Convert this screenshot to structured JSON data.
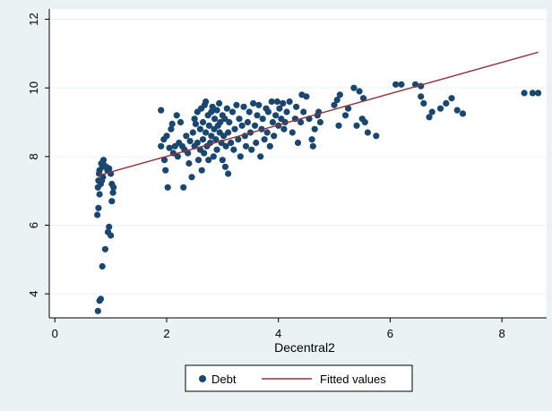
{
  "chart_data": {
    "type": "scatter",
    "xlabel": "Decentral2",
    "ylabel": "",
    "xlim": [
      -0.1,
      8.8
    ],
    "ylim": [
      3.3,
      12.3
    ],
    "xticks": [
      0,
      2,
      4,
      6,
      8
    ],
    "yticks": [
      4,
      6,
      8,
      10,
      12
    ],
    "grid": "horizontal",
    "legend_position": "bottom",
    "colors": {
      "points": "#1a476f",
      "line": "#90353b",
      "plot_bg": "#ffffff",
      "page_bg": "#eaf2f3"
    },
    "series": [
      {
        "name": "Debt",
        "kind": "scatter",
        "points": [
          [
            0.77,
            3.5
          ],
          [
            0.82,
            3.85
          ],
          [
            0.8,
            3.8
          ],
          [
            0.85,
            4.8
          ],
          [
            0.9,
            5.3
          ],
          [
            0.95,
            5.8
          ],
          [
            0.97,
            5.95
          ],
          [
            1.0,
            5.7
          ],
          [
            1.02,
            6.7
          ],
          [
            0.76,
            6.3
          ],
          [
            0.78,
            6.5
          ],
          [
            0.8,
            6.9
          ],
          [
            0.77,
            7.1
          ],
          [
            0.78,
            7.3
          ],
          [
            0.8,
            7.6
          ],
          [
            0.79,
            7.5
          ],
          [
            0.82,
            7.2
          ],
          [
            0.85,
            7.7
          ],
          [
            0.83,
            7.8
          ],
          [
            0.87,
            7.9
          ],
          [
            0.84,
            7.3
          ],
          [
            0.86,
            7.4
          ],
          [
            0.88,
            7.75
          ],
          [
            0.92,
            7.7
          ],
          [
            0.94,
            7.6
          ],
          [
            0.97,
            7.65
          ],
          [
            1.0,
            7.5
          ],
          [
            1.02,
            7.2
          ],
          [
            1.05,
            7.1
          ],
          [
            1.04,
            6.95
          ],
          [
            1.9,
            9.35
          ],
          [
            1.9,
            8.3
          ],
          [
            1.95,
            8.5
          ],
          [
            1.96,
            7.9
          ],
          [
            1.98,
            7.6
          ],
          [
            2.0,
            8.6
          ],
          [
            2.02,
            7.1
          ],
          [
            2.05,
            8.25
          ],
          [
            2.08,
            8.8
          ],
          [
            2.1,
            8.95
          ],
          [
            2.12,
            8.1
          ],
          [
            2.15,
            8.3
          ],
          [
            2.18,
            9.2
          ],
          [
            2.2,
            8.0
          ],
          [
            2.22,
            8.4
          ],
          [
            2.25,
            9.0
          ],
          [
            2.28,
            8.3
          ],
          [
            2.3,
            7.1
          ],
          [
            2.32,
            8.2
          ],
          [
            2.35,
            8.6
          ],
          [
            2.38,
            8.1
          ],
          [
            2.4,
            7.8
          ],
          [
            2.42,
            8.45
          ],
          [
            2.45,
            7.4
          ],
          [
            2.47,
            8.7
          ],
          [
            2.5,
            8.3
          ],
          [
            2.5,
            9.1
          ],
          [
            2.52,
            8.95
          ],
          [
            2.55,
            8.4
          ],
          [
            2.55,
            9.3
          ],
          [
            2.57,
            7.9
          ],
          [
            2.6,
            8.2
          ],
          [
            2.6,
            8.8
          ],
          [
            2.62,
            9.4
          ],
          [
            2.63,
            7.6
          ],
          [
            2.65,
            8.5
          ],
          [
            2.65,
            9.0
          ],
          [
            2.67,
            8.1
          ],
          [
            2.68,
            9.5
          ],
          [
            2.7,
            8.7
          ],
          [
            2.7,
            9.6
          ],
          [
            2.72,
            8.3
          ],
          [
            2.74,
            9.2
          ],
          [
            2.75,
            7.9
          ],
          [
            2.76,
            8.9
          ],
          [
            2.78,
            8.4
          ],
          [
            2.8,
            9.3
          ],
          [
            2.8,
            8.6
          ],
          [
            2.82,
            9.45
          ],
          [
            2.84,
            8.0
          ],
          [
            2.85,
            8.8
          ],
          [
            2.86,
            9.1
          ],
          [
            2.88,
            8.5
          ],
          [
            2.9,
            9.35
          ],
          [
            2.9,
            8.2
          ],
          [
            2.92,
            8.9
          ],
          [
            2.94,
            9.55
          ],
          [
            2.95,
            8.7
          ],
          [
            2.96,
            9.0
          ],
          [
            2.98,
            8.4
          ],
          [
            3.0,
            9.2
          ],
          [
            3.0,
            7.9
          ],
          [
            3.02,
            8.6
          ],
          [
            3.04,
            9.1
          ],
          [
            3.05,
            7.7
          ],
          [
            3.06,
            8.3
          ],
          [
            3.08,
            9.4
          ],
          [
            3.1,
            8.7
          ],
          [
            3.1,
            7.5
          ],
          [
            3.12,
            9.0
          ],
          [
            3.15,
            8.4
          ],
          [
            3.18,
            9.3
          ],
          [
            3.2,
            8.2
          ],
          [
            3.22,
            8.8
          ],
          [
            3.25,
            9.5
          ],
          [
            3.28,
            8.5
          ],
          [
            3.3,
            9.1
          ],
          [
            3.32,
            8.0
          ],
          [
            3.35,
            8.9
          ],
          [
            3.38,
            9.45
          ],
          [
            3.4,
            8.6
          ],
          [
            3.42,
            8.3
          ],
          [
            3.45,
            9.0
          ],
          [
            3.48,
            9.3
          ],
          [
            3.5,
            8.7
          ],
          [
            3.52,
            8.2
          ],
          [
            3.55,
            9.55
          ],
          [
            3.58,
            8.9
          ],
          [
            3.6,
            8.4
          ],
          [
            3.62,
            9.2
          ],
          [
            3.65,
            9.5
          ],
          [
            3.68,
            8.0
          ],
          [
            3.7,
            8.8
          ],
          [
            3.72,
            9.1
          ],
          [
            3.75,
            8.5
          ],
          [
            3.78,
            9.4
          ],
          [
            3.8,
            8.7
          ],
          [
            3.82,
            9.3
          ],
          [
            3.85,
            8.3
          ],
          [
            3.88,
            9.6
          ],
          [
            3.9,
            9.0
          ],
          [
            3.92,
            8.6
          ],
          [
            3.95,
            9.2
          ],
          [
            3.98,
            9.6
          ],
          [
            4.0,
            8.9
          ],
          [
            4.02,
            9.4
          ],
          [
            4.05,
            9.1
          ],
          [
            4.08,
            9.55
          ],
          [
            4.1,
            8.8
          ],
          [
            4.12,
            9.0
          ],
          [
            4.15,
            9.3
          ],
          [
            4.2,
            9.6
          ],
          [
            4.25,
            8.7
          ],
          [
            4.3,
            9.1
          ],
          [
            4.32,
            9.45
          ],
          [
            4.35,
            8.4
          ],
          [
            4.4,
            9.0
          ],
          [
            4.42,
            9.8
          ],
          [
            4.45,
            9.3
          ],
          [
            4.5,
            9.75
          ],
          [
            4.55,
            9.1
          ],
          [
            4.6,
            8.5
          ],
          [
            4.62,
            8.3
          ],
          [
            4.65,
            8.8
          ],
          [
            4.7,
            9.2
          ],
          [
            4.72,
            9.3
          ],
          [
            4.75,
            9.0
          ],
          [
            5.0,
            9.5
          ],
          [
            5.05,
            9.65
          ],
          [
            5.08,
            8.9
          ],
          [
            5.1,
            9.8
          ],
          [
            5.2,
            9.2
          ],
          [
            5.25,
            9.4
          ],
          [
            5.35,
            10.0
          ],
          [
            5.4,
            8.9
          ],
          [
            5.45,
            9.9
          ],
          [
            5.5,
            9.1
          ],
          [
            5.52,
            9.7
          ],
          [
            5.55,
            9.0
          ],
          [
            5.6,
            8.7
          ],
          [
            5.75,
            8.6
          ],
          [
            6.1,
            10.1
          ],
          [
            6.2,
            10.1
          ],
          [
            6.45,
            10.1
          ],
          [
            6.55,
            10.05
          ],
          [
            6.55,
            9.75
          ],
          [
            6.6,
            9.55
          ],
          [
            6.7,
            9.15
          ],
          [
            6.75,
            9.3
          ],
          [
            6.9,
            9.4
          ],
          [
            7.0,
            9.55
          ],
          [
            7.1,
            9.7
          ],
          [
            7.2,
            9.35
          ],
          [
            7.3,
            9.25
          ],
          [
            8.4,
            9.85
          ],
          [
            8.55,
            9.85
          ],
          [
            8.65,
            9.85
          ]
        ]
      },
      {
        "name": "Fitted values",
        "kind": "line",
        "points": [
          [
            0.76,
            7.44
          ],
          [
            8.65,
            11.04
          ]
        ]
      }
    ]
  }
}
